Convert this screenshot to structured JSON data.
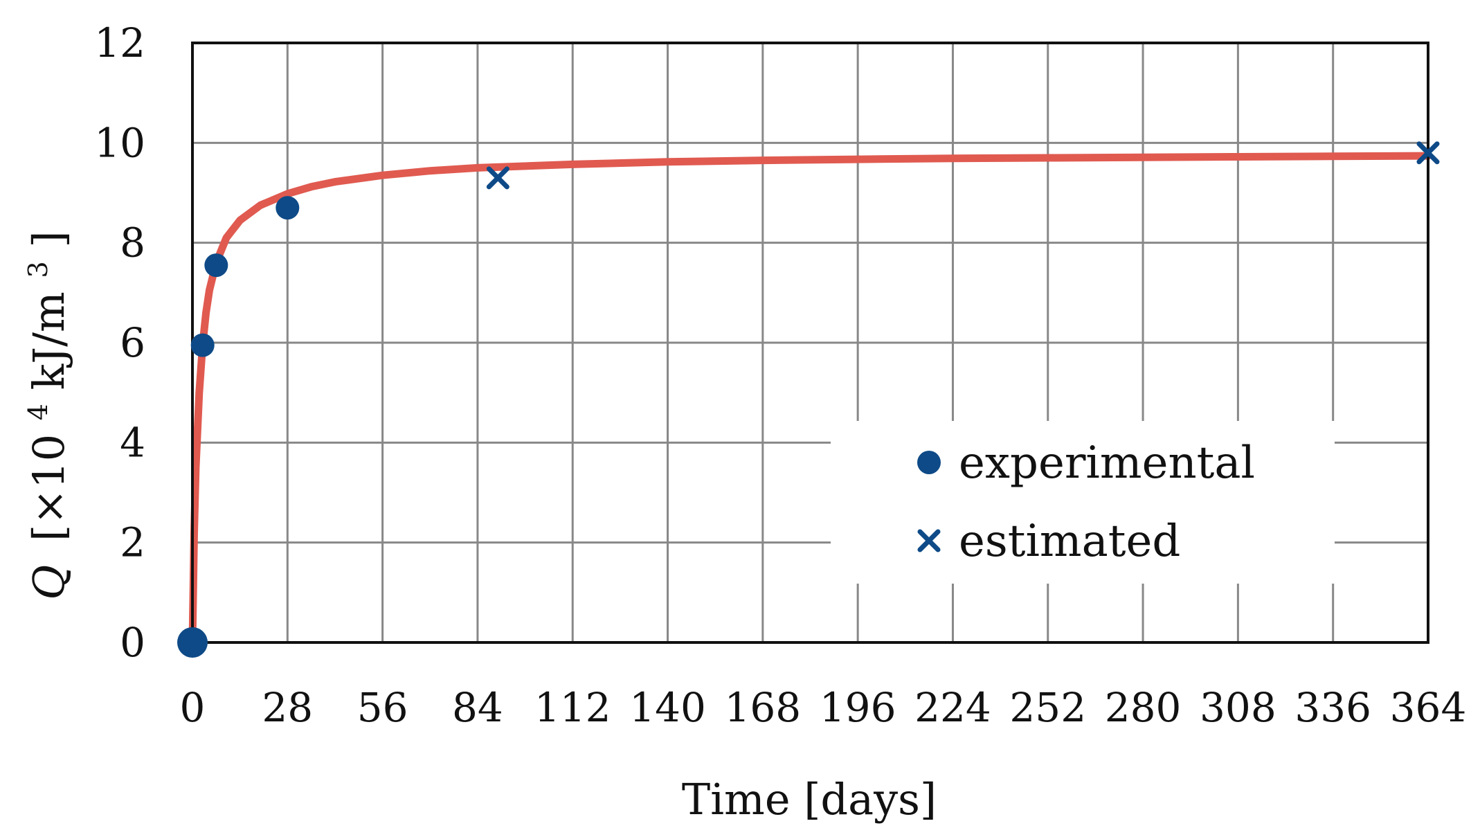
{
  "chart_data": {
    "type": "scatter",
    "xlabel": "Time [days]",
    "ylabel": {
      "italic": "Q",
      "prefix": "[×10",
      "exp": "4",
      "middle": " kJ/m",
      "exp2": "3",
      "suffix": "]"
    },
    "xlim": [
      0,
      364
    ],
    "ylim": [
      0,
      12
    ],
    "x_ticks": [
      0,
      28,
      56,
      84,
      112,
      140,
      168,
      196,
      224,
      252,
      280,
      308,
      336,
      364
    ],
    "y_ticks": [
      0,
      2,
      4,
      6,
      8,
      10,
      12
    ],
    "grid": true,
    "legend_position": "lower-right",
    "series": [
      {
        "name": "experimental",
        "marker": "circle",
        "color": "#0e4a87",
        "points": [
          [
            0,
            0
          ],
          [
            3,
            5.95
          ],
          [
            7,
            7.55
          ],
          [
            28,
            8.7
          ]
        ]
      },
      {
        "name": "estimated",
        "marker": "x",
        "color": "#0e4a87",
        "points": [
          [
            90,
            9.3
          ],
          [
            364,
            9.8
          ]
        ]
      },
      {
        "marker": "line",
        "color": "#e05a50",
        "points": [
          [
            0,
            0
          ],
          [
            0.5,
            2.2
          ],
          [
            1,
            3.5
          ],
          [
            2,
            5.0
          ],
          [
            3,
            5.95
          ],
          [
            4,
            6.6
          ],
          [
            5,
            7.05
          ],
          [
            7,
            7.6
          ],
          [
            10,
            8.1
          ],
          [
            14,
            8.45
          ],
          [
            20,
            8.75
          ],
          [
            28,
            8.98
          ],
          [
            35,
            9.12
          ],
          [
            42,
            9.22
          ],
          [
            56,
            9.35
          ],
          [
            70,
            9.44
          ],
          [
            84,
            9.5
          ],
          [
            112,
            9.57
          ],
          [
            140,
            9.62
          ],
          [
            168,
            9.65
          ],
          [
            196,
            9.67
          ],
          [
            224,
            9.69
          ],
          [
            252,
            9.7
          ],
          [
            280,
            9.71
          ],
          [
            308,
            9.72
          ],
          [
            336,
            9.73
          ],
          [
            364,
            9.74
          ]
        ]
      }
    ]
  },
  "colors": {
    "grid": "#888888",
    "axis": "#111111",
    "fit_line": "#e05a50",
    "marker": "#0e4a87",
    "background": "#ffffff"
  }
}
